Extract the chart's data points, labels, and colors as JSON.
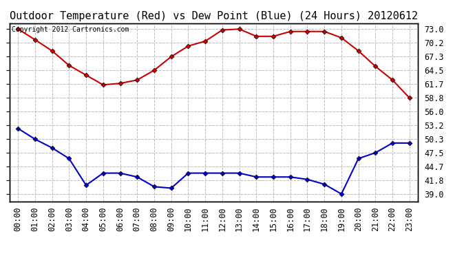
{
  "title": "Outdoor Temperature (Red) vs Dew Point (Blue) (24 Hours) 20120612",
  "copyright_text": "Copyright 2012 Cartronics.com",
  "hours": [
    "00:00",
    "01:00",
    "02:00",
    "03:00",
    "04:00",
    "05:00",
    "06:00",
    "07:00",
    "08:00",
    "09:00",
    "10:00",
    "11:00",
    "12:00",
    "13:00",
    "14:00",
    "15:00",
    "16:00",
    "17:00",
    "18:00",
    "19:00",
    "20:00",
    "21:00",
    "22:00",
    "23:00"
  ],
  "temp_red": [
    73.0,
    70.8,
    68.5,
    65.5,
    63.5,
    61.5,
    61.8,
    62.5,
    64.5,
    67.3,
    69.5,
    70.5,
    72.8,
    73.0,
    71.5,
    71.5,
    72.5,
    72.5,
    72.5,
    71.2,
    68.5,
    65.3,
    62.5,
    58.8
  ],
  "dew_blue": [
    52.5,
    50.3,
    48.5,
    46.3,
    40.8,
    43.3,
    43.3,
    42.5,
    40.5,
    40.2,
    43.3,
    43.3,
    43.3,
    43.3,
    42.5,
    42.5,
    42.5,
    42.0,
    41.0,
    39.0,
    46.3,
    47.5,
    49.5,
    49.5
  ],
  "yticks": [
    39.0,
    41.8,
    44.7,
    47.5,
    50.3,
    53.2,
    56.0,
    58.8,
    61.7,
    64.5,
    67.3,
    70.2,
    73.0
  ],
  "ymin": 37.5,
  "ymax": 74.2,
  "bg_color": "#ffffff",
  "plot_bg_color": "#ffffff",
  "grid_color": "#bbbbbb",
  "temp_color": "#cc0000",
  "dew_color": "#0000cc",
  "marker": "D",
  "marker_size": 3.5,
  "line_width": 1.5,
  "title_fontsize": 11,
  "tick_fontsize": 8.5,
  "copyright_fontsize": 7
}
